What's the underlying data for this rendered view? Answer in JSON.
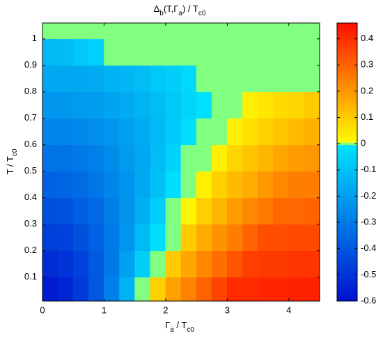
{
  "chart_data": {
    "type": "heatmap",
    "title": [
      "Δ",
      "b",
      "(T,Γ",
      "a",
      ") / T",
      "c0"
    ],
    "xlabel": [
      "Γ",
      "a",
      " / T",
      "c0"
    ],
    "ylabel": [
      "T / T",
      "c0"
    ],
    "x": [
      0.125,
      0.375,
      0.625,
      0.875,
      1.125,
      1.375,
      1.625,
      1.875,
      2.125,
      2.375,
      2.625,
      2.875,
      3.125,
      3.375,
      3.625,
      3.875,
      4.125,
      4.375
    ],
    "y": [
      0.05,
      0.15,
      0.25,
      0.35,
      0.45,
      0.55,
      0.65,
      0.75,
      0.85,
      0.95,
      1.05
    ],
    "z": [
      [
        -0.57,
        -0.54,
        -0.48,
        -0.4,
        -0.28,
        -0.14,
        0,
        0.09,
        0.18,
        0.24,
        0.3,
        0.36,
        0.41,
        0.41,
        0.42,
        0.42,
        0.43,
        0.43
      ],
      [
        -0.52,
        -0.5,
        -0.46,
        -0.39,
        -0.3,
        -0.19,
        -0.06,
        0,
        0.1,
        0.17,
        0.23,
        0.28,
        0.33,
        0.37,
        0.38,
        0.38,
        0.39,
        0.39
      ],
      [
        -0.47,
        -0.46,
        -0.42,
        -0.37,
        -0.3,
        -0.22,
        -0.12,
        -0.02,
        0,
        0.1,
        0.16,
        0.21,
        0.25,
        0.3,
        0.34,
        0.34,
        0.35,
        0.35
      ],
      [
        -0.42,
        -0.41,
        -0.38,
        -0.35,
        -0.29,
        -0.23,
        -0.15,
        -0.06,
        0,
        0.02,
        0.09,
        0.14,
        0.19,
        0.23,
        0.26,
        0.29,
        0.29,
        0.3
      ],
      [
        -0.37,
        -0.36,
        -0.34,
        -0.31,
        -0.27,
        -0.23,
        -0.17,
        -0.1,
        -0.02,
        0,
        0.03,
        0.09,
        0.13,
        0.16,
        0.2,
        0.23,
        0.25,
        0.25
      ],
      [
        -0.32,
        -0.32,
        -0.3,
        -0.28,
        -0.25,
        -0.21,
        -0.17,
        -0.11,
        -0.05,
        0,
        0,
        0.03,
        0.08,
        0.11,
        0.14,
        0.17,
        0.19,
        0.2
      ],
      [
        -0.27,
        -0.27,
        -0.26,
        -0.24,
        -0.22,
        -0.19,
        -0.16,
        -0.12,
        -0.07,
        -0.02,
        0,
        0,
        0.03,
        0.06,
        0.09,
        0.11,
        0.13,
        0.15
      ],
      [
        -0.22,
        -0.22,
        -0.21,
        -0.2,
        -0.18,
        -0.16,
        -0.14,
        -0.11,
        -0.08,
        -0.04,
        -0.01,
        0,
        0,
        0.03,
        0.05,
        0.07,
        0.08,
        0.1
      ],
      [
        -0.17,
        -0.17,
        -0.17,
        -0.16,
        -0.14,
        -0.13,
        -0.11,
        -0.08,
        -0.06,
        -0.03,
        0,
        0,
        0,
        0,
        0,
        0,
        0,
        0
      ],
      [
        -0.12,
        -0.11,
        -0.08,
        -0.05,
        0,
        0,
        0,
        0,
        0,
        0,
        0,
        0,
        0,
        0,
        0,
        0,
        0,
        0
      ],
      [
        0,
        0,
        0,
        0,
        0,
        0,
        0,
        0,
        0,
        0,
        0,
        0,
        0,
        0,
        0,
        0,
        0,
        0
      ]
    ],
    "xlim": [
      0,
      4.5
    ],
    "ylim": [
      0.01,
      1.06
    ],
    "xticks": [
      0,
      1,
      2,
      3,
      4
    ],
    "yticks": [
      0.1,
      0.2,
      0.3,
      0.4,
      0.5,
      0.6,
      0.7,
      0.8,
      0.9,
      1
    ],
    "clim": [
      -0.6,
      0.46
    ],
    "cticks": [
      -0.6,
      -0.5,
      -0.4,
      -0.3,
      -0.2,
      -0.1,
      0,
      0.1,
      0.2,
      0.3,
      0.4
    ],
    "colormap": {
      "negative": [
        "#0010d0",
        "#00e4ff"
      ],
      "zero": "#80ff80",
      "positive": [
        "#ffff00",
        "#ff1000"
      ]
    }
  }
}
